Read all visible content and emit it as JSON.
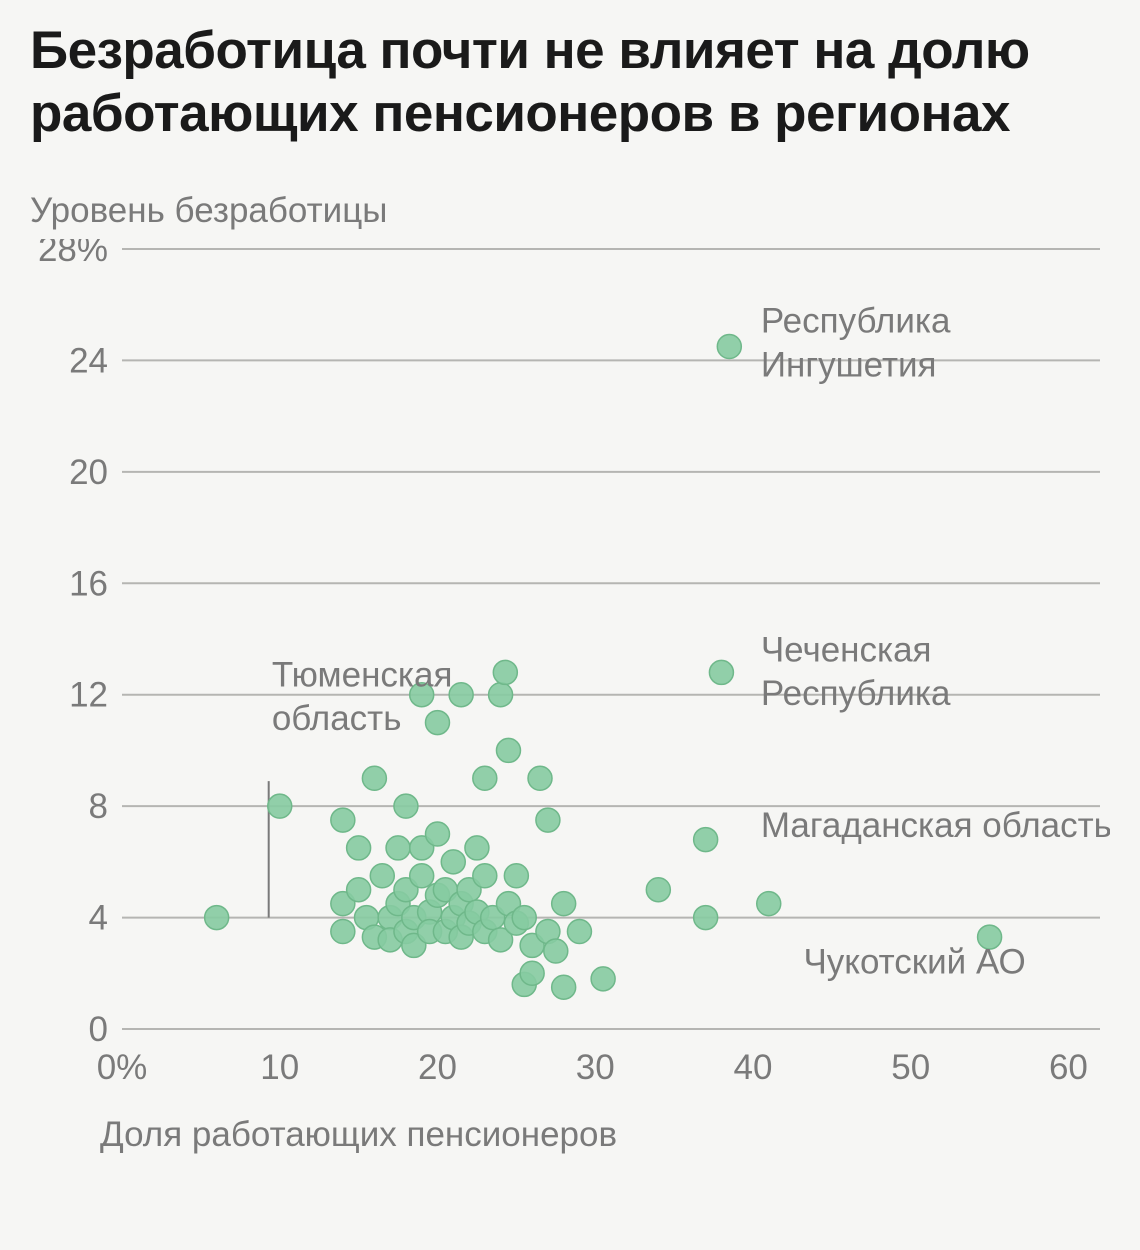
{
  "title": "Безработица почти не влияет на долю работающих пенсионеров в регионах",
  "ylabel": "Уровень безработицы",
  "xlabel": "Доля работающих пенсионеров",
  "chart": {
    "type": "scatter",
    "background_color": "#f6f6f4",
    "grid_color": "#b5b5b2",
    "text_color": "#7a7a7a",
    "title_color": "#1a1a1a",
    "point_fill": "#86cba1",
    "point_stroke": "#6fb88a",
    "point_radius": 12,
    "point_opacity": 0.9,
    "title_fontsize": 53,
    "label_fontsize": 35,
    "tick_fontsize": 35,
    "annotation_fontsize": 35,
    "xlim": [
      0,
      62
    ],
    "ylim": [
      0,
      28
    ],
    "xtick_labels": [
      "0%",
      "10",
      "20",
      "30",
      "40",
      "50",
      "60"
    ],
    "xtick_positions": [
      0,
      10,
      20,
      30,
      40,
      50,
      60
    ],
    "ytick_labels": [
      "0",
      "4",
      "8",
      "12",
      "16",
      "20",
      "24",
      "28%"
    ],
    "ytick_positions": [
      0,
      4,
      8,
      12,
      16,
      20,
      24,
      28
    ],
    "points": [
      {
        "x": 6,
        "y": 4.0
      },
      {
        "x": 10,
        "y": 8.0
      },
      {
        "x": 14,
        "y": 7.5
      },
      {
        "x": 14,
        "y": 4.5
      },
      {
        "x": 14,
        "y": 3.5
      },
      {
        "x": 15,
        "y": 5.0
      },
      {
        "x": 15,
        "y": 6.5
      },
      {
        "x": 15.5,
        "y": 4.0
      },
      {
        "x": 16,
        "y": 3.3
      },
      {
        "x": 16,
        "y": 9.0
      },
      {
        "x": 16.5,
        "y": 5.5
      },
      {
        "x": 17,
        "y": 4.0
      },
      {
        "x": 17,
        "y": 3.2
      },
      {
        "x": 17.5,
        "y": 6.5
      },
      {
        "x": 17.5,
        "y": 4.5
      },
      {
        "x": 18,
        "y": 3.5
      },
      {
        "x": 18,
        "y": 5.0
      },
      {
        "x": 18,
        "y": 8.0
      },
      {
        "x": 18.5,
        "y": 4.0
      },
      {
        "x": 18.5,
        "y": 3.0
      },
      {
        "x": 19,
        "y": 5.5
      },
      {
        "x": 19,
        "y": 6.5
      },
      {
        "x": 19,
        "y": 12.0
      },
      {
        "x": 19.5,
        "y": 4.2
      },
      {
        "x": 19.5,
        "y": 3.5
      },
      {
        "x": 20,
        "y": 4.8
      },
      {
        "x": 20,
        "y": 7.0
      },
      {
        "x": 20,
        "y": 11.0
      },
      {
        "x": 20.5,
        "y": 3.5
      },
      {
        "x": 20.5,
        "y": 5.0
      },
      {
        "x": 21,
        "y": 4.0
      },
      {
        "x": 21,
        "y": 6.0
      },
      {
        "x": 21.5,
        "y": 3.3
      },
      {
        "x": 21.5,
        "y": 4.5
      },
      {
        "x": 21.5,
        "y": 12.0
      },
      {
        "x": 22,
        "y": 5.0
      },
      {
        "x": 22,
        "y": 3.8
      },
      {
        "x": 22.5,
        "y": 4.2
      },
      {
        "x": 22.5,
        "y": 6.5
      },
      {
        "x": 23,
        "y": 3.5
      },
      {
        "x": 23,
        "y": 5.5
      },
      {
        "x": 23,
        "y": 9.0
      },
      {
        "x": 23.5,
        "y": 4.0
      },
      {
        "x": 24,
        "y": 3.2
      },
      {
        "x": 24,
        "y": 12.0
      },
      {
        "x": 24.3,
        "y": 12.8
      },
      {
        "x": 24.5,
        "y": 4.5
      },
      {
        "x": 24.5,
        "y": 10.0
      },
      {
        "x": 25,
        "y": 3.8
      },
      {
        "x": 25,
        "y": 5.5
      },
      {
        "x": 25.5,
        "y": 1.6
      },
      {
        "x": 25.5,
        "y": 4.0
      },
      {
        "x": 26,
        "y": 2.0
      },
      {
        "x": 26,
        "y": 3.0
      },
      {
        "x": 26.5,
        "y": 9.0
      },
      {
        "x": 27,
        "y": 3.5
      },
      {
        "x": 27,
        "y": 7.5
      },
      {
        "x": 27.5,
        "y": 2.8
      },
      {
        "x": 28,
        "y": 1.5
      },
      {
        "x": 28,
        "y": 4.5
      },
      {
        "x": 29,
        "y": 3.5
      },
      {
        "x": 30.5,
        "y": 1.8
      },
      {
        "x": 34,
        "y": 5.0
      },
      {
        "x": 37,
        "y": 6.8
      },
      {
        "x": 37,
        "y": 4.0
      },
      {
        "x": 38,
        "y": 12.8
      },
      {
        "x": 38.5,
        "y": 24.5
      },
      {
        "x": 41,
        "y": 4.5
      },
      {
        "x": 55,
        "y": 3.3
      }
    ],
    "leader_line": {
      "x": 9.3,
      "from_y": 4.0,
      "to_y": 8.9
    },
    "annotations": [
      {
        "text_lines": [
          "Тюменская",
          "область"
        ],
        "ax": 9.5,
        "ay": 12.3,
        "anchor": "start"
      },
      {
        "text_lines": [
          "Республика",
          "Ингушетия"
        ],
        "ax": 40.5,
        "ay": 25.0,
        "anchor": "start"
      },
      {
        "text_lines": [
          "Чеченская",
          "Республика"
        ],
        "ax": 40.5,
        "ay": 13.2,
        "anchor": "start"
      },
      {
        "text_lines": [
          "Магаданская область"
        ],
        "ax": 40.5,
        "ay": 6.9,
        "anchor": "start"
      },
      {
        "text_lines": [
          "Чукотский АО"
        ],
        "ax": 43.2,
        "ay": 2.0,
        "anchor": "start"
      }
    ]
  }
}
